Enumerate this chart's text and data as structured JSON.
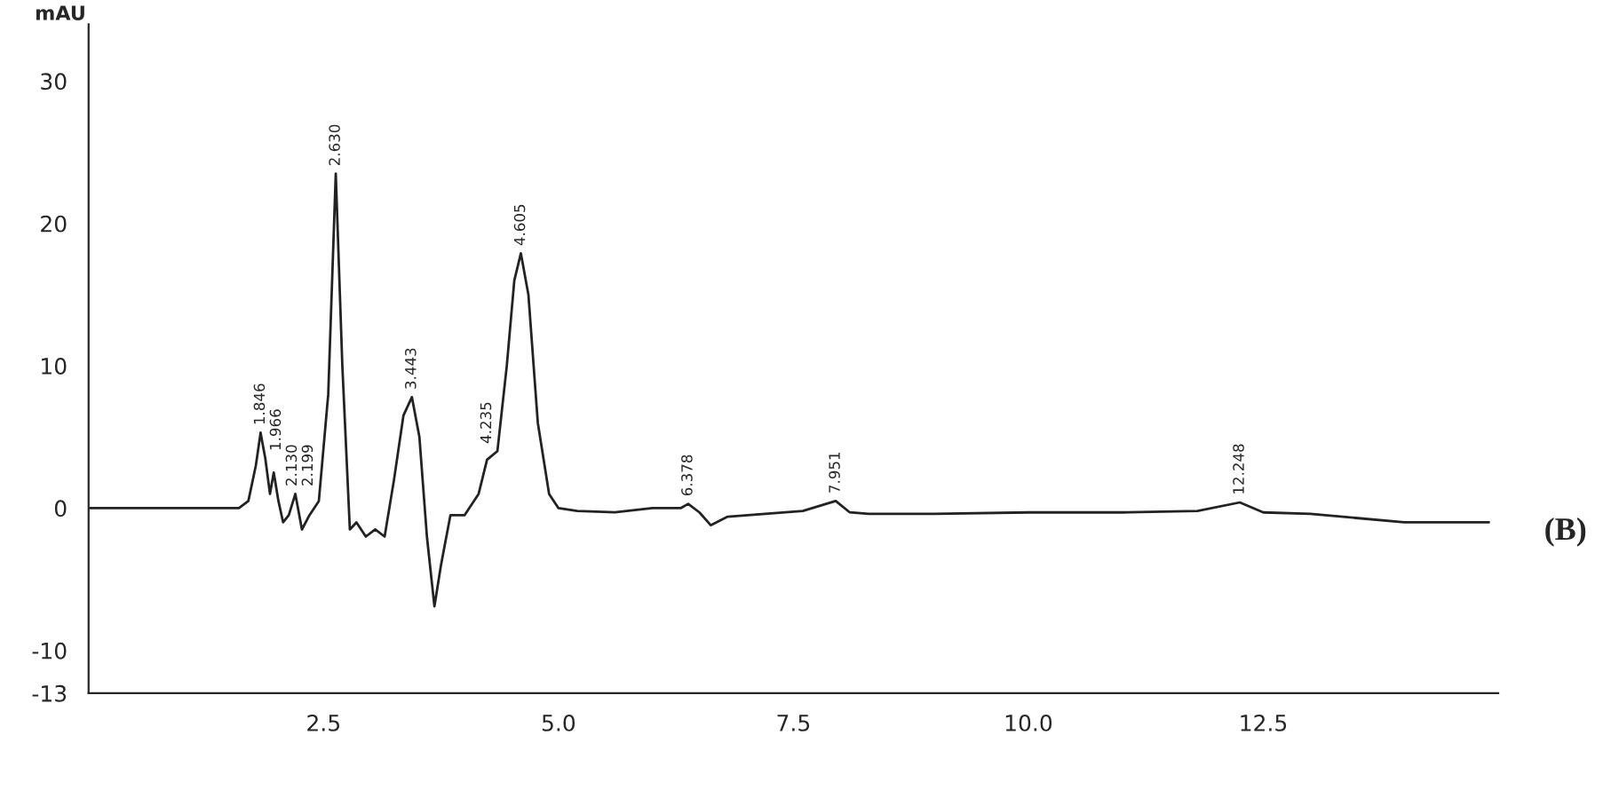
{
  "chart_data": {
    "type": "line",
    "ylabel": "mAU",
    "x": [
      0,
      1.0,
      1.6,
      1.7,
      1.78,
      1.83,
      1.88,
      1.93,
      1.97,
      2.02,
      2.07,
      2.13,
      2.2,
      2.27,
      2.35,
      2.45,
      2.55,
      2.63,
      2.7,
      2.78,
      2.85,
      2.95,
      3.05,
      3.15,
      3.25,
      3.35,
      3.44,
      3.52,
      3.6,
      3.68,
      3.75,
      3.85,
      4.0,
      4.15,
      4.24,
      4.35,
      4.45,
      4.53,
      4.6,
      4.68,
      4.78,
      4.9,
      5.0,
      5.2,
      5.6,
      6.0,
      6.3,
      6.38,
      6.5,
      6.62,
      6.8,
      7.2,
      7.6,
      7.95,
      8.1,
      8.3,
      9.0,
      10.0,
      11.0,
      11.8,
      12.25,
      12.5,
      13.0,
      14.0,
      14.9
    ],
    "series": [
      {
        "color": "#222222",
        "values": [
          0,
          0,
          0,
          0.5,
          3.0,
          5.3,
          3.5,
          1.0,
          2.5,
          0.5,
          -1.0,
          -0.5,
          1.0,
          -1.5,
          -0.5,
          0.5,
          8,
          23.5,
          10,
          -1.5,
          -1.0,
          -2.0,
          -1.5,
          -2.0,
          2,
          6.5,
          7.8,
          5,
          -2,
          -6.9,
          -4,
          -0.5,
          -0.5,
          1.0,
          3.4,
          4.0,
          10,
          16,
          17.9,
          15,
          6,
          1,
          0,
          -0.2,
          -0.3,
          0,
          0,
          0.3,
          -0.3,
          -1.2,
          -0.6,
          -0.4,
          -0.2,
          0.5,
          -0.3,
          -0.4,
          -0.4,
          -0.3,
          -0.3,
          -0.2,
          0.4,
          -0.3,
          -0.4,
          -1,
          -1
        ]
      }
    ],
    "xlim": [
      0,
      15
    ],
    "ylim": [
      -13,
      34
    ],
    "xticks": [
      {
        "value": 2.5,
        "label": "2.5"
      },
      {
        "value": 5,
        "label": "5.0"
      },
      {
        "value": 7.5,
        "label": "7.5"
      },
      {
        "value": 10,
        "label": "10.0"
      },
      {
        "value": 12.5,
        "label": "12.5"
      }
    ],
    "yticks": [
      -13,
      -10,
      0,
      10,
      20,
      30
    ],
    "grid": false,
    "legend": false,
    "marker": "none",
    "line_style": "solid",
    "annotations": [
      {
        "text": "1.846",
        "x": 1.83,
        "y": 5.3
      },
      {
        "text": "1.966",
        "x": 1.97,
        "y": 2.5
      },
      {
        "text": "2.130",
        "x": 2.13,
        "y": -0.5
      },
      {
        "text": "2.199",
        "x": 2.2,
        "y": 1.0
      },
      {
        "text": "2.630",
        "x": 2.63,
        "y": 23.5
      },
      {
        "text": "3.443",
        "x": 3.44,
        "y": 7.8
      },
      {
        "text": "4.235",
        "x": 4.24,
        "y": 3.4
      },
      {
        "text": "4.605",
        "x": 4.6,
        "y": 17.9
      },
      {
        "text": "6.378",
        "x": 6.38,
        "y": 0.3
      },
      {
        "text": "7.951",
        "x": 7.95,
        "y": 0.5
      },
      {
        "text": "12.248",
        "x": 12.25,
        "y": 0.4
      },
      "(B)"
    ]
  }
}
